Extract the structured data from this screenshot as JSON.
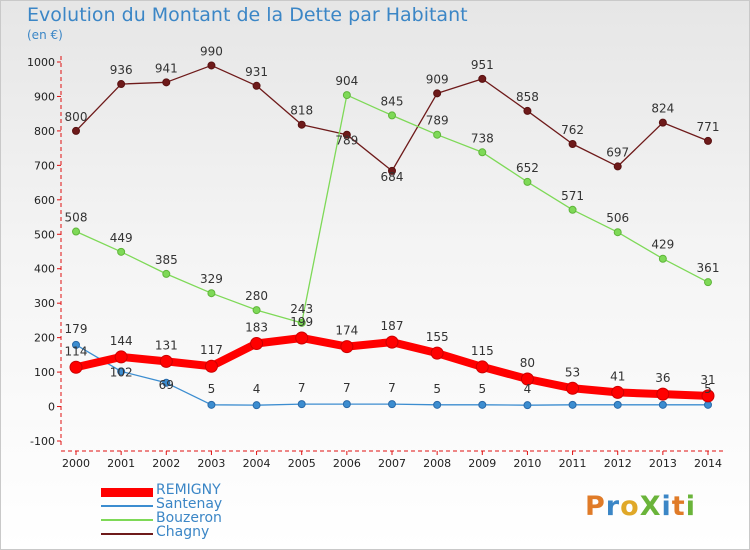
{
  "title": "Evolution du Montant de la Dette par Habitant",
  "unit_label": "(en €)",
  "logo": {
    "text": "ProXiti",
    "letter_colors": [
      "#e07b28",
      "#3b86c6",
      "#e0a828",
      "#6ab43a",
      "#3b86c6",
      "#e07b28",
      "#6ab43a"
    ]
  },
  "chart_data": {
    "type": "line",
    "x": [
      2000,
      2001,
      2002,
      2003,
      2004,
      2005,
      2006,
      2007,
      2008,
      2009,
      2010,
      2011,
      2012,
      2013,
      2014
    ],
    "x_tick_labels": [
      "2000",
      "2001",
      "2002",
      "2003",
      "2004",
      "2005",
      "2006",
      "2007",
      "2008",
      "2009",
      "2010",
      "2011",
      "2012",
      "2013",
      "2014"
    ],
    "ylim": [
      -100,
      1000
    ],
    "y_ticks": [
      -100,
      0,
      100,
      200,
      300,
      400,
      500,
      600,
      700,
      800,
      900,
      1000
    ],
    "y_tick_labels": [
      "-100",
      "0",
      "100",
      "200",
      "300",
      "400",
      "500",
      "600",
      "700",
      "800",
      "900",
      "1000"
    ],
    "grid": false,
    "legend_position": "bottom-left",
    "series": [
      {
        "name": "REMIGNY",
        "color": "#ff0000",
        "values": [
          114,
          144,
          131,
          117,
          183,
          199,
          174,
          187,
          155,
          115,
          80,
          53,
          41,
          36,
          31
        ],
        "labels": [
          "114",
          "144",
          "131",
          "117",
          "183",
          "199",
          "174",
          "187",
          "155",
          "115",
          "80",
          "53",
          "41",
          "36",
          "31"
        ]
      },
      {
        "name": "Santenay",
        "color": "#3c8dd0",
        "values": [
          179,
          102,
          69,
          5,
          4,
          7,
          7,
          7,
          5,
          5,
          4,
          5,
          5,
          5,
          5
        ],
        "labels": [
          "179",
          "102",
          "69",
          "5",
          "4",
          "7",
          "7",
          "7",
          "5",
          "5",
          "4",
          "",
          "",
          "",
          "5"
        ]
      },
      {
        "name": "Bouzeron",
        "color": "#7ed957",
        "values": [
          508,
          449,
          385,
          329,
          280,
          243,
          904,
          845,
          789,
          738,
          652,
          571,
          506,
          429,
          361
        ],
        "labels": [
          "508",
          "449",
          "385",
          "329",
          "280",
          "243",
          "904",
          "845",
          "789",
          "738",
          "652",
          "571",
          "506",
          "429",
          "361"
        ]
      },
      {
        "name": "Chagny",
        "color": "#6e1a1a",
        "values": [
          800,
          936,
          941,
          990,
          931,
          818,
          789,
          684,
          909,
          951,
          858,
          762,
          697,
          824,
          771
        ],
        "labels": [
          "800",
          "936",
          "941",
          "990",
          "931",
          "818",
          "789",
          "684",
          "909",
          "951",
          "858",
          "762",
          "697",
          "824",
          "771"
        ]
      }
    ]
  }
}
